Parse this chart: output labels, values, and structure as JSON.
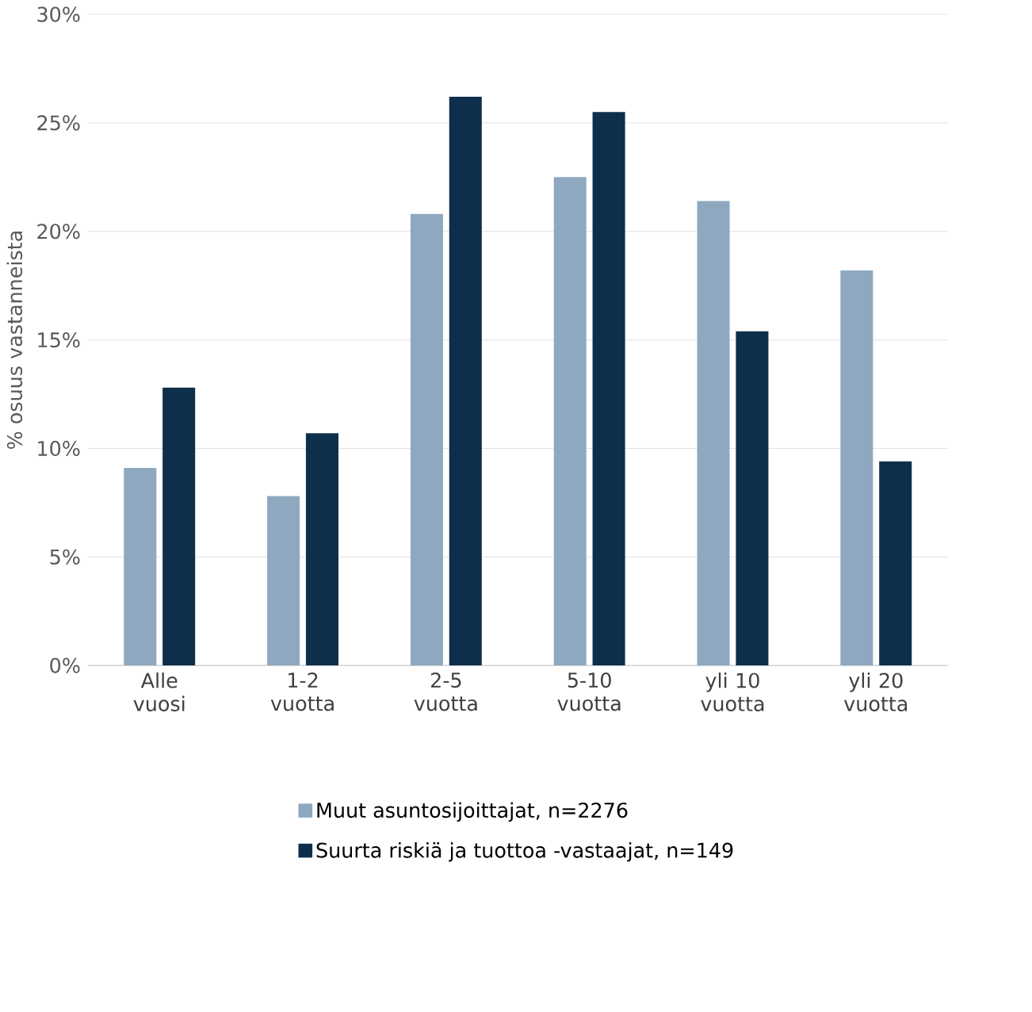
{
  "chart_data": {
    "type": "bar",
    "ylabel": "% osuus vastanneista",
    "categories": [
      "Alle vuosi",
      "1-2 vuotta",
      "2-5 vuotta",
      "5-10 vuotta",
      "yli 10 vuotta",
      "yli 20 vuotta"
    ],
    "series": [
      {
        "name": "Muut asuntosijoittajat, n=2276",
        "color": "#8ea9bf",
        "values": [
          9.1,
          7.8,
          20.8,
          22.5,
          21.4,
          18.2
        ]
      },
      {
        "name": "Suurta riskiä ja tuottoa -vastaajat, n=149",
        "color": "#0e2f4b",
        "values": [
          12.8,
          10.7,
          26.2,
          25.5,
          15.4,
          9.4
        ]
      }
    ],
    "ylim": [
      0,
      30
    ],
    "yticks": [
      {
        "value": 0,
        "label": "0%"
      },
      {
        "value": 5,
        "label": "5%"
      },
      {
        "value": 10,
        "label": "10%"
      },
      {
        "value": 15,
        "label": "15%"
      },
      {
        "value": 20,
        "label": "20%"
      },
      {
        "value": 25,
        "label": "25%"
      },
      {
        "value": 30,
        "label": "30%"
      }
    ],
    "grid": "y",
    "legend": "bottom"
  }
}
